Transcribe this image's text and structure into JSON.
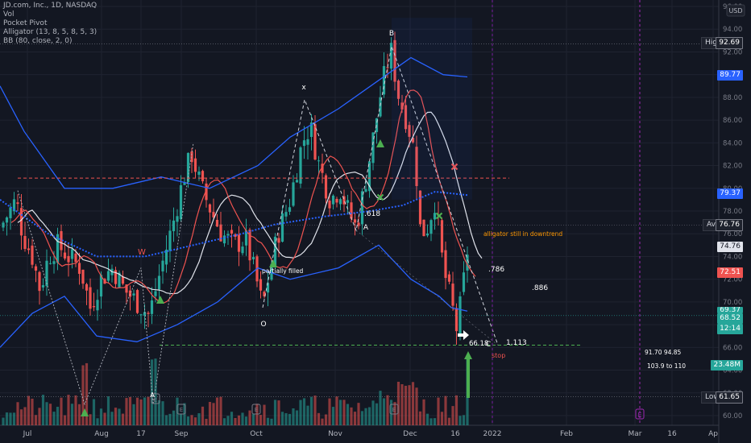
{
  "legend": {
    "symbol": "JD.com, Inc., 1D, NASDAQ",
    "vol": "Vol",
    "pocket": "Pocket Pivot",
    "alligator": "Alligator (13, 8, 5, 8, 5, 3)",
    "bb": "BB (80, close, 2, 0)"
  },
  "price_axis": {
    "currency": "USD",
    "ticks": [
      "96.00",
      "94.00",
      "92.00",
      "90.00",
      "88.00",
      "86.00",
      "84.00",
      "82.00",
      "80.00",
      "78.00",
      "76.00",
      "74.00",
      "72.00",
      "70.00",
      "68.00",
      "66.00",
      "64.00",
      "62.00",
      "60.00"
    ],
    "min": 59.5,
    "max": 96.5
  },
  "time_axis": [
    "Jul",
    "Aug",
    "17",
    "Sep",
    "Oct",
    "Nov",
    "Dec",
    "16",
    "2022",
    "Feb",
    "Mar",
    "16",
    "Ap"
  ],
  "tags": {
    "high_label": "High",
    "high": "92.69",
    "upper_bb": "89.77",
    "mid_bb": "79.37",
    "avg_label": "Avg",
    "avg": "76.76",
    "last_white": "74.76",
    "red_line": "72.51",
    "current": "68.52",
    "countdown": "12:14",
    "volume": "23.48M",
    "low_label": "Low",
    "low": "61.65",
    "hidden": "69.37"
  },
  "annotations": {
    "x": "x",
    "B": "B",
    "A": "A",
    "C": "C",
    "O": "O",
    "W": "W",
    "fib618": ".618",
    "fib786": ".786",
    "fib886": ".886",
    "fib1113": "1.113",
    "partially_filled": "partially filled",
    "alligator_note": "alligator still in downtrend",
    "price_c": "66.18",
    "stop": "stop",
    "note1": "91.70  94.85",
    "note2": "103.9 to 110",
    "E": "E"
  },
  "chart_data": {
    "type": "candlestick",
    "title": "JD.com, Inc., 1D, NASDAQ",
    "xlabel": "",
    "ylabel": "",
    "ylim": [
      59.5,
      96.5
    ],
    "x": [
      "Jul",
      "Aug",
      "17",
      "Sep",
      "Oct",
      "Nov",
      "Dec",
      "16",
      "2022",
      "Feb",
      "Mar",
      "16",
      "Ap"
    ],
    "swing_points": [
      {
        "label": "O",
        "value": 69.4
      },
      {
        "label": "x",
        "value": 87.9
      },
      {
        "label": "A",
        "value": 76.3
      },
      {
        "label": "B",
        "value": 92.69
      },
      {
        "label": "C",
        "value": 66.18
      }
    ],
    "levels": {
      "high": 92.69,
      "low": 61.65,
      "avg": 76.76,
      "support": 66.18,
      "resistance": 80.9
    },
    "grid": true,
    "legend": "top-left"
  },
  "colors": {
    "bg": "#131722",
    "up": "#26a69a",
    "down": "#ef5350",
    "bb": "#2962ff",
    "white": "#e0e3eb",
    "red": "#ef5350",
    "green": "#4caf50"
  }
}
